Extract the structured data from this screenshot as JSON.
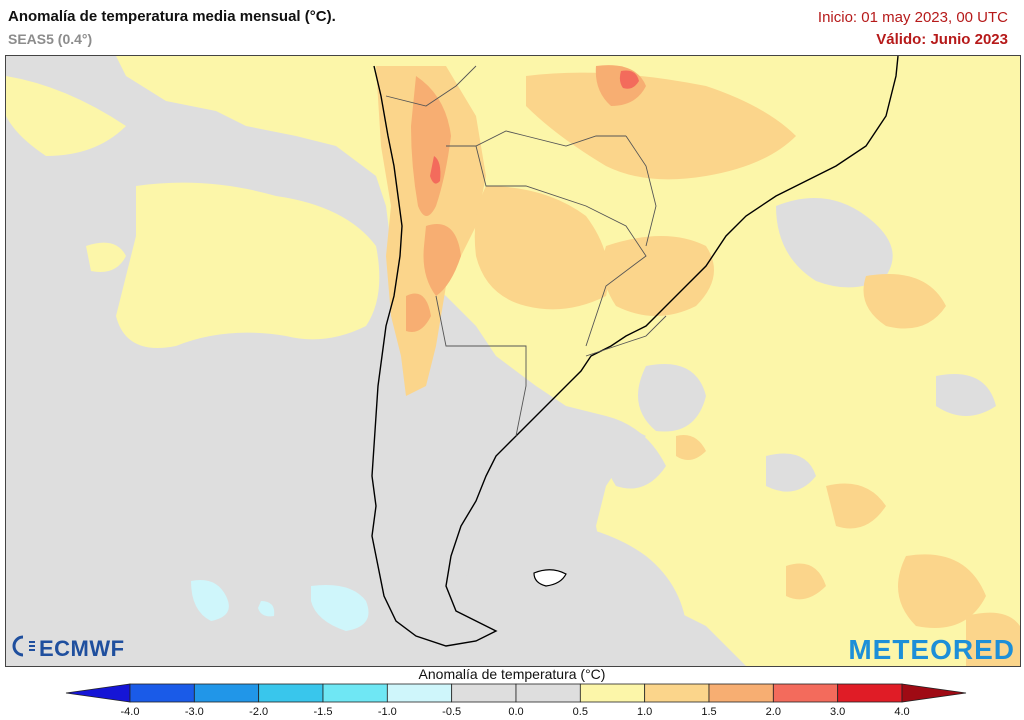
{
  "header": {
    "title": "Anomalía de temperatura media mensual (°C).",
    "subtitle": "SEAS5 (0.4°)",
    "init": "Inicio: 01 may 2023, 00 UTC",
    "valid": "Válido: Junio 2023"
  },
  "legend": {
    "title": "Anomalía de temperatura (°C)",
    "ticks": [
      "-4.0",
      "-3.0",
      "-2.0",
      "-1.5",
      "-1.0",
      "-0.5",
      "0.0",
      "0.5",
      "1.0",
      "1.5",
      "2.0",
      "3.0",
      "4.0"
    ],
    "colors": [
      "#1515d6",
      "#1a5be8",
      "#2196e8",
      "#39c6ec",
      "#6fe7f4",
      "#cff6fb",
      "#dedede",
      "#dedede",
      "#fcf6a9",
      "#fbd58b",
      "#f7ae72",
      "#f36b5c",
      "#e01c26",
      "#9f0a14"
    ]
  },
  "logos": {
    "left": "ECMWF",
    "right": "METEORED"
  },
  "colors": {
    "neutral": "#dedede",
    "warm_light": "#fcf6a9",
    "warm_mid": "#fbd58b",
    "warm_high": "#f7ae72",
    "warm_max": "#f36b5c",
    "cool_light": "#cff6fb",
    "coast": "#000000",
    "border": "#555555"
  }
}
